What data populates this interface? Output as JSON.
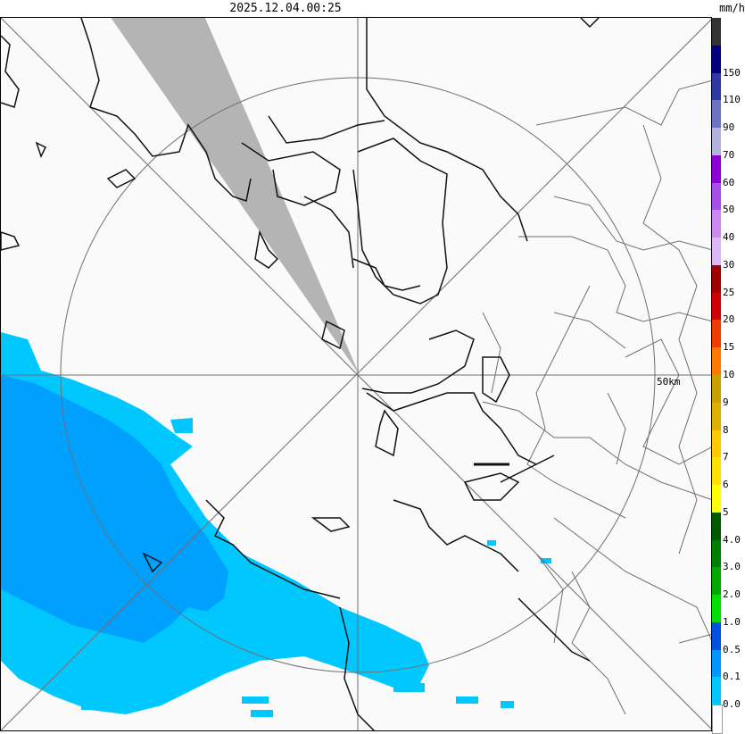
{
  "header": {
    "timestamp": "2025.12.04.00:25",
    "unit": "mm/h"
  },
  "map": {
    "range_ring_label": "50km"
  },
  "legend": {
    "bins": [
      {
        "label": "",
        "color": "#333333"
      },
      {
        "label": "150",
        "color": "#000080"
      },
      {
        "label": "110",
        "color": "#2c3aa0"
      },
      {
        "label": "90",
        "color": "#6a74c4"
      },
      {
        "label": "70",
        "color": "#b0b4dd"
      },
      {
        "label": "60",
        "color": "#8b00d6"
      },
      {
        "label": "50",
        "color": "#a94de8"
      },
      {
        "label": "40",
        "color": "#c88af0"
      },
      {
        "label": "30",
        "color": "#dcb6f5"
      },
      {
        "label": "25",
        "color": "#a00000"
      },
      {
        "label": "20",
        "color": "#d20000"
      },
      {
        "label": "15",
        "color": "#f23b00"
      },
      {
        "label": "10",
        "color": "#ff7800"
      },
      {
        "label": "9",
        "color": "#c8a000"
      },
      {
        "label": "8",
        "color": "#e0b000"
      },
      {
        "label": "7",
        "color": "#ffc800"
      },
      {
        "label": "6",
        "color": "#ffe000"
      },
      {
        "label": "5",
        "color": "#ffff00"
      },
      {
        "label": "4.0",
        "color": "#005a00"
      },
      {
        "label": "3.0",
        "color": "#008000"
      },
      {
        "label": "2.0",
        "color": "#00a800"
      },
      {
        "label": "1.0",
        "color": "#00e000"
      },
      {
        "label": "0.5",
        "color": "#0050e0"
      },
      {
        "label": "0.1",
        "color": "#0096ff"
      },
      {
        "label": "0.0",
        "color": "#00c8ff"
      },
      {
        "label": "",
        "color": "#ffffff"
      }
    ]
  }
}
